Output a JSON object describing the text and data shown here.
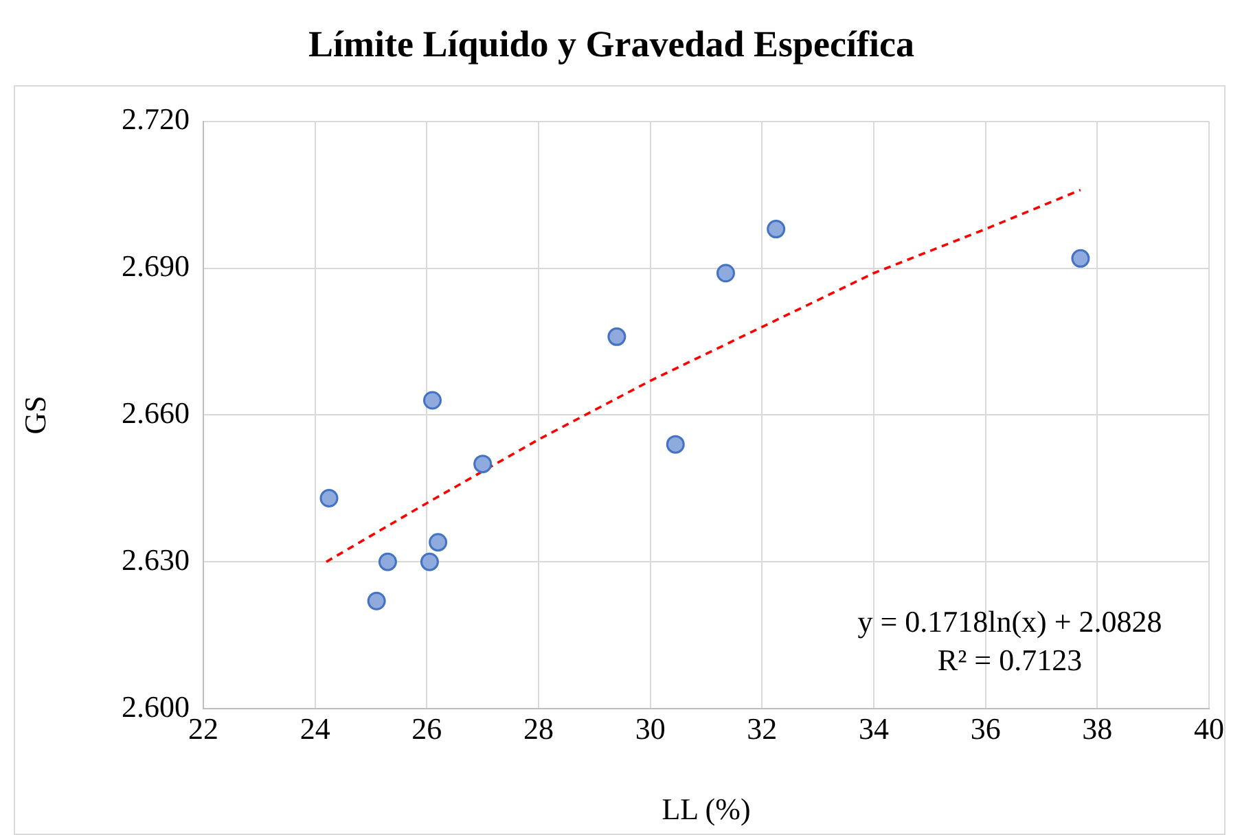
{
  "chart_data": {
    "type": "scatter",
    "title": "Límite Líquido y Gravedad Específica",
    "xlabel": "LL (%)",
    "ylabel": "GS",
    "x": [
      24.25,
      25.1,
      25.3,
      26.05,
      26.1,
      26.2,
      27.0,
      29.4,
      30.45,
      31.35,
      32.25,
      37.7
    ],
    "series": [
      {
        "color": "#4472c4",
        "values": [
          2.643,
          2.622,
          2.63,
          2.63,
          2.663,
          2.634,
          2.65,
          2.676,
          2.654,
          2.689,
          2.698,
          2.692
        ]
      },
      {
        "type": "line",
        "color": "#ff0000",
        "line_style": "dashed",
        "marker": "none",
        "x": [
          24.2,
          26,
          28,
          30,
          32,
          34,
          36,
          37.7
        ],
        "values": [
          2.63,
          2.642,
          2.655,
          2.667,
          2.678,
          2.689,
          2.698,
          2.706
        ]
      }
    ],
    "marker": "circle",
    "grid": true,
    "legend": false,
    "xlim": [
      22,
      40
    ],
    "xticks": [
      22,
      24,
      26,
      28,
      30,
      32,
      34,
      36,
      38,
      40
    ],
    "ylim": [
      2.6,
      2.72
    ],
    "yticks": [
      {
        "value": 2.6,
        "label": "2.600"
      },
      {
        "value": 2.63,
        "label": "2.630"
      },
      {
        "value": 2.66,
        "label": "2.660"
      },
      {
        "value": 2.69,
        "label": "2.690"
      },
      {
        "value": 2.72,
        "label": "2.720"
      }
    ],
    "annotations": [
      "y = 0.1718ln(x) + 2.0828",
      "R² = 0.7123"
    ]
  }
}
